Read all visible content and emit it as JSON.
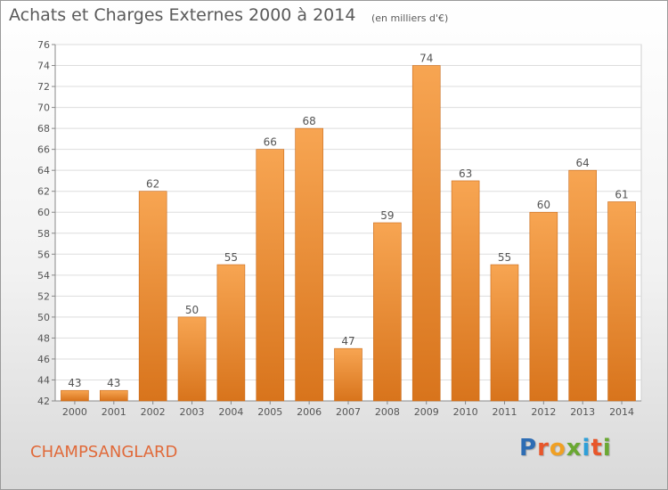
{
  "title": "Achats et Charges Externes 2000 à 2014",
  "unit": "(en milliers d'€)",
  "location": "CHAMPSANGLARD",
  "logo": {
    "text": "Proxiti",
    "letters": [
      {
        "char": "P",
        "color": "#2e6db4"
      },
      {
        "char": "r",
        "color": "#e8562a"
      },
      {
        "char": "o",
        "color": "#f0a023"
      },
      {
        "char": "x",
        "color": "#6aa832"
      },
      {
        "char": "i",
        "color": "#2e9fd8"
      },
      {
        "char": "t",
        "color": "#e8562a"
      },
      {
        "char": "i",
        "color": "#6aa832"
      }
    ]
  },
  "colors": {
    "bar_top": "#f7a552",
    "bar_bottom": "#d8741c",
    "bar_edge": "#c86a1a",
    "text": "#555555",
    "grid": "#dddddd",
    "location": "#e06a3a"
  },
  "chart_data": {
    "type": "bar",
    "title": "Achats et Charges Externes 2000 à 2014",
    "subtitle": "(en milliers d'€)",
    "xlabel": "",
    "ylabel": "",
    "categories": [
      "2000",
      "2001",
      "2002",
      "2003",
      "2004",
      "2005",
      "2006",
      "2007",
      "2008",
      "2009",
      "2010",
      "2011",
      "2012",
      "2013",
      "2014"
    ],
    "values": [
      43,
      43,
      62,
      50,
      55,
      66,
      68,
      47,
      59,
      74,
      63,
      55,
      60,
      64,
      61
    ],
    "ylim": [
      42,
      76
    ],
    "yticks": [
      42,
      44,
      46,
      48,
      50,
      52,
      54,
      56,
      58,
      60,
      62,
      64,
      66,
      68,
      70,
      72,
      74,
      76
    ],
    "grid": true,
    "data_labels": true
  }
}
